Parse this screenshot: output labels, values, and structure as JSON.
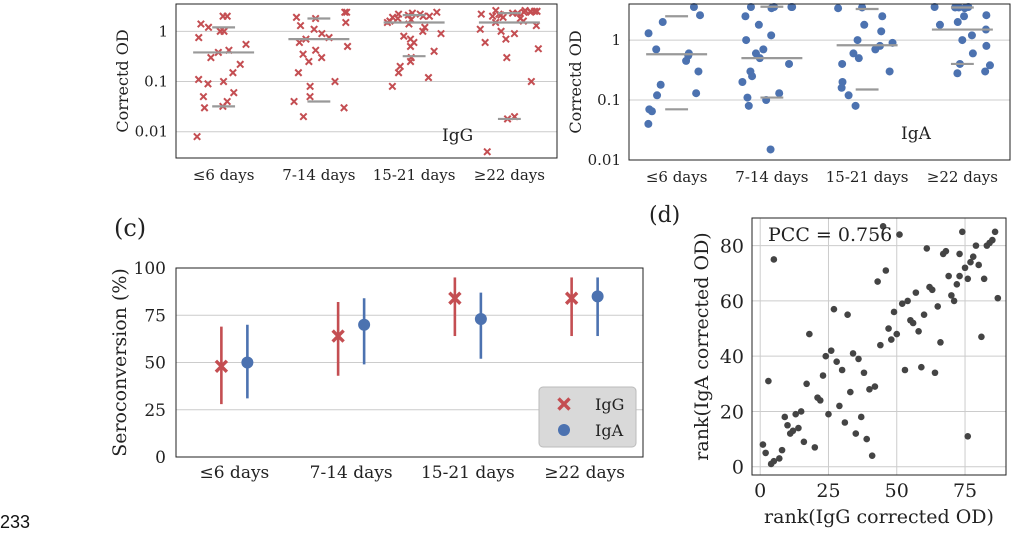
{
  "page_number": "233",
  "colors": {
    "igg": "#c44e52",
    "iga": "#4c72b0",
    "median": "#999999",
    "grid": "#cccccc",
    "scatter": "#444444",
    "legend_bg": "#d9d9d9"
  },
  "chart_data": [
    {
      "panel": "a",
      "type": "scatter",
      "subtype": "swarm",
      "label": "",
      "annotation": "IgG",
      "ylabel": "Correctd OD",
      "yscale": "log",
      "ylim": [
        0.003,
        3.5
      ],
      "yticks": [
        0.01,
        0.1,
        1
      ],
      "ytick_labels": [
        "0.01",
        "0.1",
        "1"
      ],
      "categories": [
        "≤6 days",
        "7-14 days",
        "15-21 days",
        "≥22 days"
      ],
      "marker": "x",
      "color": "igg",
      "grid": true,
      "groups": [
        {
          "values": [
            2.0,
            2.0,
            1.4,
            1.2,
            1.0,
            1.0,
            0.75,
            0.55,
            0.42,
            0.38,
            0.3,
            0.22,
            0.15,
            0.11,
            0.1,
            0.09,
            0.06,
            0.05,
            0.04,
            0.032,
            0.03,
            0.008
          ],
          "quartiles": [
            0.032,
            0.38,
            1.2
          ]
        },
        {
          "values": [
            2.4,
            2.4,
            1.9,
            1.8,
            1.5,
            1.3,
            1.1,
            0.9,
            0.75,
            0.7,
            0.6,
            0.5,
            0.42,
            0.35,
            0.3,
            0.25,
            0.15,
            0.1,
            0.08,
            0.05,
            0.04,
            0.03,
            0.02
          ],
          "quartiles": [
            0.04,
            0.7,
            1.8
          ]
        },
        {
          "values": [
            2.4,
            2.3,
            2.2,
            2.2,
            2.1,
            2.0,
            2.0,
            1.9,
            1.8,
            1.7,
            1.6,
            1.5,
            1.4,
            1.2,
            1.0,
            0.9,
            0.8,
            0.7,
            0.6,
            0.5,
            0.4,
            0.3,
            0.25,
            0.2,
            0.15,
            0.12,
            0.08
          ],
          "quartiles": [
            0.32,
            1.5,
            2.1
          ]
        },
        {
          "values": [
            2.6,
            2.6,
            2.5,
            2.5,
            2.5,
            2.4,
            2.4,
            2.3,
            2.3,
            2.2,
            2.2,
            2.1,
            2.0,
            1.9,
            1.8,
            1.6,
            1.5,
            1.3,
            1.1,
            1.0,
            0.9,
            0.7,
            0.6,
            0.45,
            0.3,
            0.1,
            0.02,
            0.018,
            0.004
          ],
          "quartiles": [
            0.018,
            1.5,
            2.3
          ]
        }
      ]
    },
    {
      "panel": "b",
      "type": "scatter",
      "subtype": "swarm",
      "label": "",
      "annotation": "IgA",
      "ylabel": "Correctd OD",
      "yscale": "log",
      "ylim": [
        0.01,
        4
      ],
      "yticks": [
        0.01,
        0.1,
        1
      ],
      "ytick_labels": [
        "0.01",
        "0.1",
        "1"
      ],
      "categories": [
        "≤6 days",
        "7-14 days",
        "15-21 days",
        "≥22 days"
      ],
      "marker": "o",
      "color": "iga",
      "grid": true,
      "groups": [
        {
          "values": [
            3.8,
            2.6,
            2.0,
            1.3,
            0.7,
            0.6,
            0.55,
            0.45,
            0.3,
            0.18,
            0.13,
            0.12,
            0.07,
            0.065,
            0.04
          ],
          "quartiles": [
            0.07,
            0.58,
            2.5
          ]
        },
        {
          "values": [
            3.8,
            3.8,
            3.6,
            3.6,
            3.4,
            2.5,
            1.8,
            1.2,
            1.0,
            0.7,
            0.6,
            0.5,
            0.4,
            0.3,
            0.25,
            0.2,
            0.13,
            0.11,
            0.1,
            0.08,
            0.015
          ],
          "quartiles": [
            0.11,
            0.5,
            3.6
          ]
        },
        {
          "values": [
            3.5,
            3.4,
            2.5,
            1.8,
            1.4,
            1.0,
            0.9,
            0.8,
            0.7,
            0.6,
            0.5,
            0.4,
            0.3,
            0.2,
            0.16,
            0.12,
            0.08
          ],
          "quartiles": [
            0.15,
            0.82,
            3.3
          ]
        },
        {
          "values": [
            3.6,
            3.6,
            3.5,
            3.5,
            3.4,
            2.6,
            2.5,
            2.0,
            1.8,
            1.5,
            1.2,
            1.0,
            0.8,
            0.6,
            0.4,
            0.38,
            0.3,
            0.28
          ],
          "quartiles": [
            0.4,
            1.5,
            3.5
          ]
        }
      ]
    },
    {
      "panel": "c",
      "type": "scatter",
      "subtype": "point-with-errorbars",
      "label": "(c)",
      "ylabel": "Seroconversion (%)",
      "ylim": [
        0,
        100
      ],
      "yticks": [
        0,
        25,
        50,
        75,
        100
      ],
      "categories": [
        "≤6 days",
        "7-14 days",
        "15-21 days",
        "≥22 days"
      ],
      "grid": true,
      "legend": "lower-right",
      "series": [
        {
          "name": "IgG",
          "marker": "x",
          "color": "igg",
          "values": [
            48,
            64,
            84,
            84
          ],
          "lower": [
            28,
            43,
            64,
            64
          ],
          "upper": [
            69,
            82,
            95,
            95
          ]
        },
        {
          "name": "IgA",
          "marker": "o",
          "color": "iga",
          "values": [
            50,
            70,
            73,
            85
          ],
          "lower": [
            31,
            49,
            52,
            64
          ],
          "upper": [
            70,
            84,
            87,
            95
          ]
        }
      ]
    },
    {
      "panel": "d",
      "type": "scatter",
      "label": "(d)",
      "xlabel": "rank(IgG corrected OD)",
      "ylabel": "rank(IgA corrected OD)",
      "xlim": [
        -3,
        90
      ],
      "ylim": [
        -3,
        90
      ],
      "xticks": [
        0,
        25,
        50,
        75
      ],
      "yticks": [
        0,
        20,
        40,
        60,
        80
      ],
      "annotation": "PCC = 0.756",
      "grid": true,
      "color": "scatter",
      "points": [
        [
          1,
          8
        ],
        [
          2,
          5
        ],
        [
          3,
          31
        ],
        [
          4,
          1
        ],
        [
          5,
          75
        ],
        [
          5,
          2
        ],
        [
          7,
          3
        ],
        [
          8,
          6
        ],
        [
          9,
          18
        ],
        [
          10,
          15
        ],
        [
          11,
          12
        ],
        [
          12,
          13
        ],
        [
          13,
          19
        ],
        [
          14,
          14
        ],
        [
          15,
          20
        ],
        [
          16,
          9
        ],
        [
          17,
          30
        ],
        [
          18,
          48
        ],
        [
          20,
          7
        ],
        [
          21,
          25
        ],
        [
          22,
          24
        ],
        [
          23,
          33
        ],
        [
          24,
          40
        ],
        [
          25,
          19
        ],
        [
          26,
          42
        ],
        [
          27,
          57
        ],
        [
          28,
          38
        ],
        [
          29,
          22
        ],
        [
          30,
          35
        ],
        [
          31,
          16
        ],
        [
          32,
          55
        ],
        [
          33,
          27
        ],
        [
          34,
          41
        ],
        [
          35,
          12
        ],
        [
          36,
          39
        ],
        [
          37,
          18
        ],
        [
          38,
          34
        ],
        [
          39,
          10
        ],
        [
          40,
          28
        ],
        [
          41,
          4
        ],
        [
          42,
          29
        ],
        [
          43,
          67
        ],
        [
          44,
          44
        ],
        [
          45,
          87
        ],
        [
          46,
          71
        ],
        [
          47,
          50
        ],
        [
          48,
          46
        ],
        [
          49,
          56
        ],
        [
          50,
          48
        ],
        [
          51,
          84
        ],
        [
          52,
          59
        ],
        [
          53,
          35
        ],
        [
          54,
          60
        ],
        [
          55,
          53
        ],
        [
          56,
          52
        ],
        [
          57,
          63
        ],
        [
          58,
          49
        ],
        [
          59,
          36
        ],
        [
          60,
          55
        ],
        [
          61,
          79
        ],
        [
          62,
          65
        ],
        [
          63,
          64
        ],
        [
          64,
          34
        ],
        [
          65,
          58
        ],
        [
          66,
          45
        ],
        [
          67,
          77
        ],
        [
          68,
          78
        ],
        [
          69,
          69
        ],
        [
          70,
          62
        ],
        [
          71,
          60
        ],
        [
          72,
          66
        ],
        [
          73,
          77
        ],
        [
          74,
          85
        ],
        [
          75,
          72
        ],
        [
          76,
          11
        ],
        [
          77,
          74
        ],
        [
          78,
          76
        ],
        [
          79,
          80
        ],
        [
          80,
          73
        ],
        [
          81,
          47
        ],
        [
          82,
          68
        ],
        [
          83,
          80
        ],
        [
          84,
          81
        ],
        [
          85,
          82
        ],
        [
          86,
          85
        ],
        [
          87,
          61
        ],
        [
          76,
          68
        ],
        [
          73,
          69
        ]
      ]
    }
  ]
}
